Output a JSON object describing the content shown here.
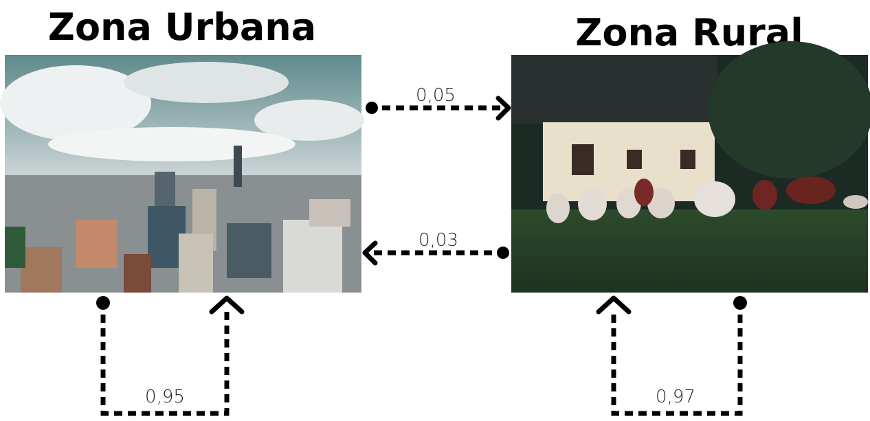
{
  "nodes": [
    {
      "title": "Zona Urbana"
    },
    {
      "title": "Zona Rural"
    }
  ],
  "edges": [
    {
      "label": "0,05"
    },
    {
      "label": "0,03"
    },
    {
      "label": "0,95"
    },
    {
      "label": "0,97"
    }
  ]
}
